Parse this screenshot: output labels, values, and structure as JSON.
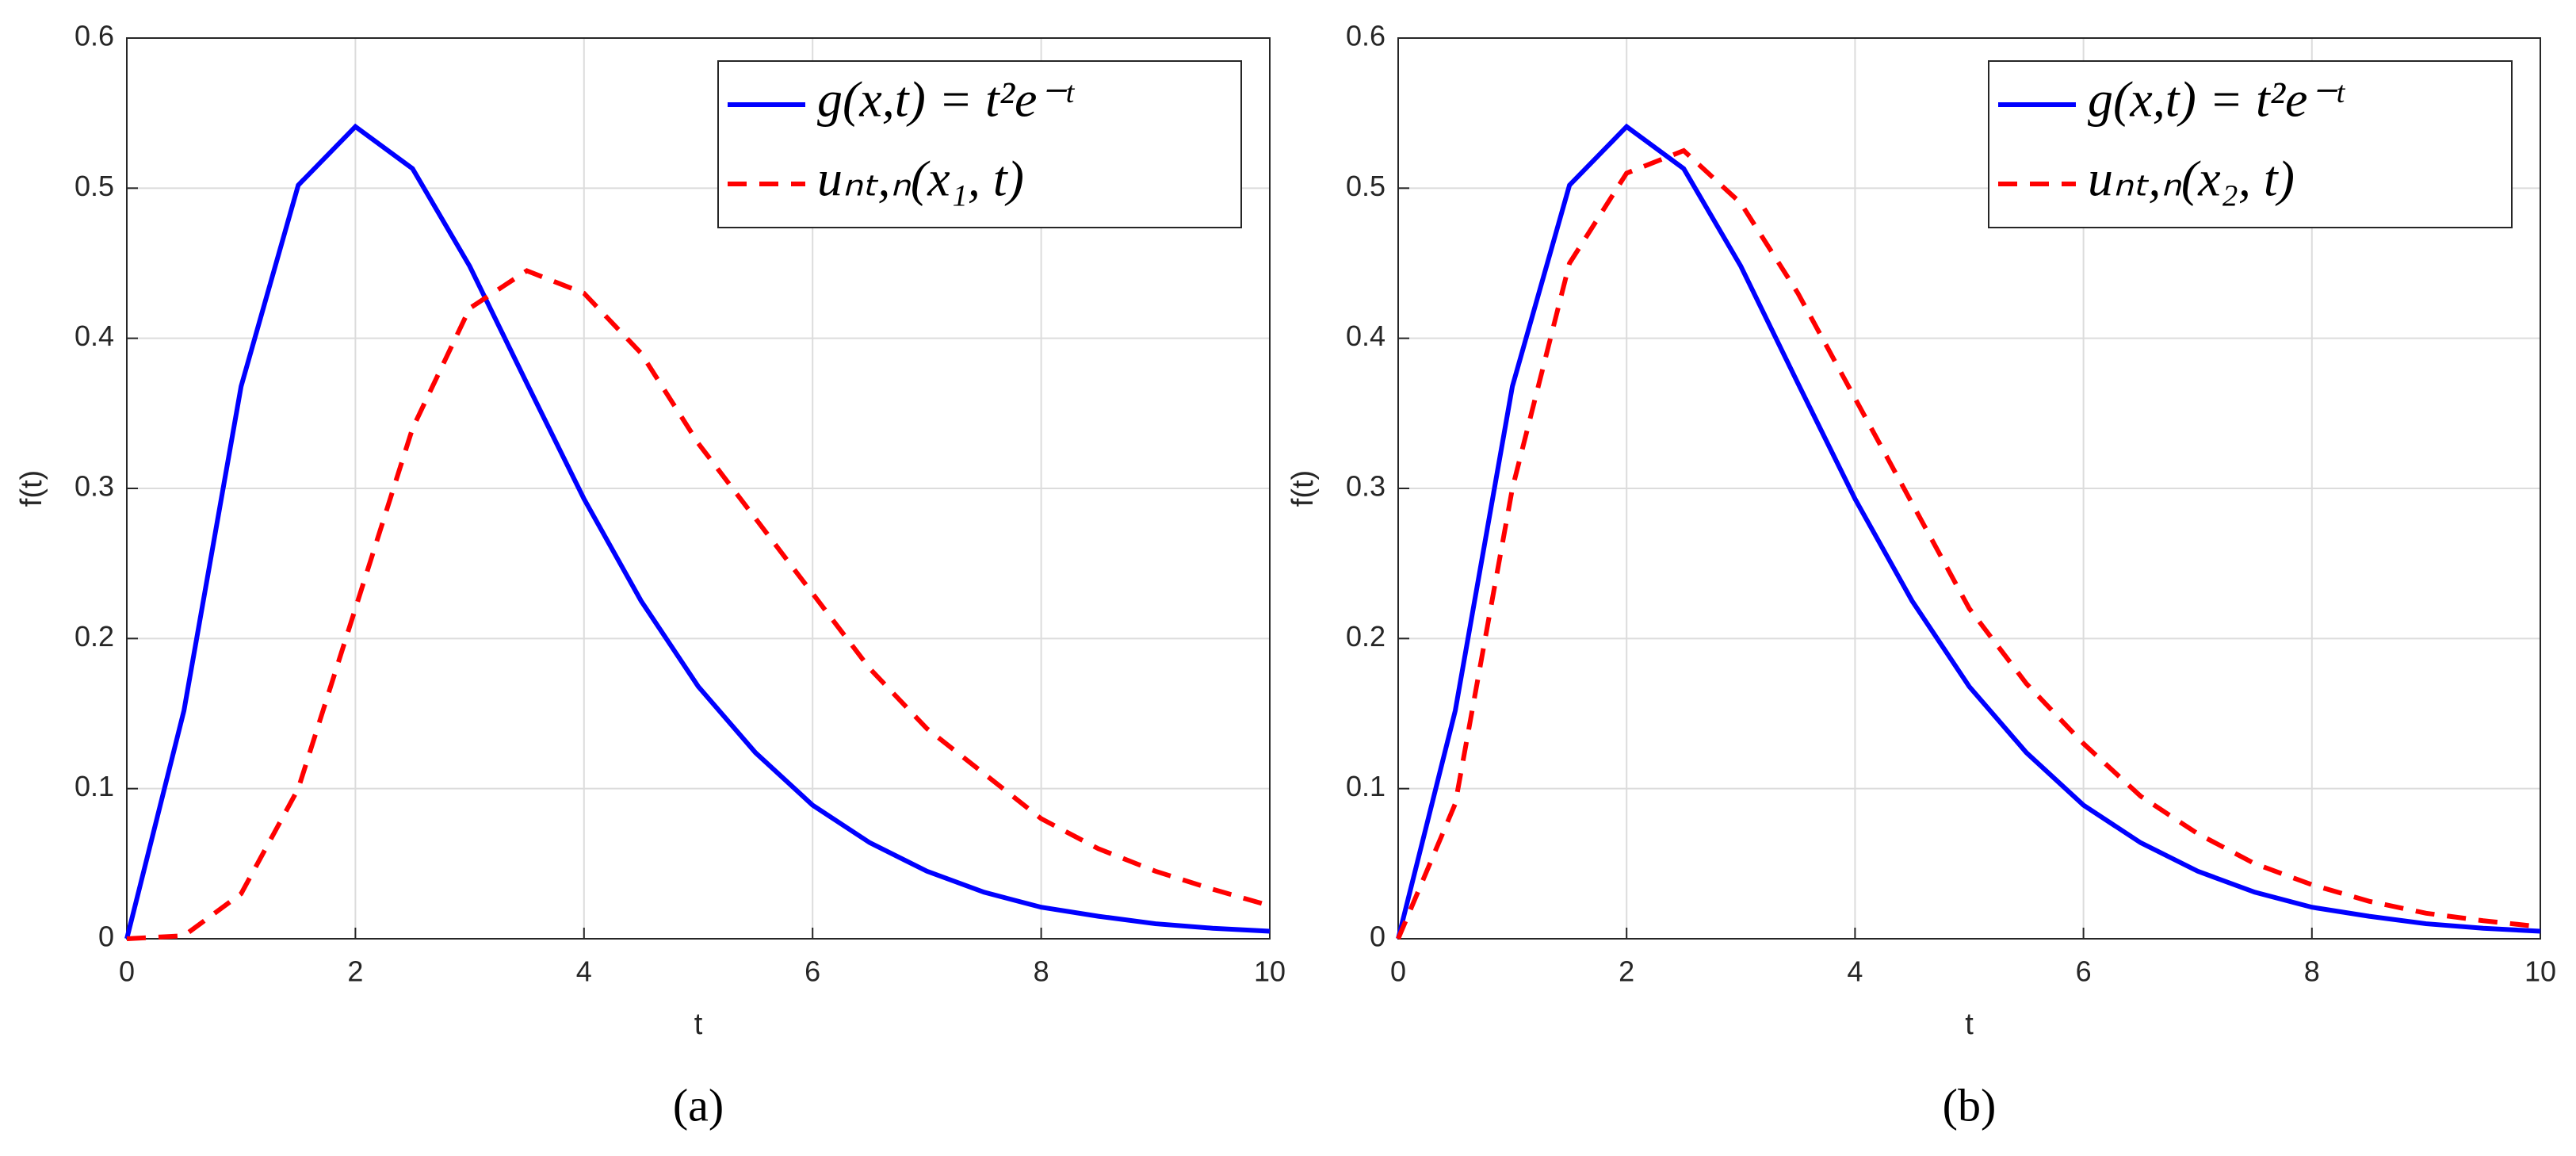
{
  "chart_data": [
    {
      "type": "line",
      "caption": "(a)",
      "xlabel": "t",
      "ylabel": "f(t)",
      "x": [
        0,
        0.5,
        1,
        1.5,
        2,
        2.5,
        3,
        3.5,
        4,
        4.5,
        5,
        5.5,
        6,
        6.5,
        7,
        7.5,
        8,
        8.5,
        9,
        9.5,
        10
      ],
      "xlim": [
        0,
        10
      ],
      "xticks": [
        0,
        2,
        4,
        6,
        8,
        10
      ],
      "ylim": [
        0,
        0.6
      ],
      "yticks": [
        0,
        0.1,
        0.2,
        0.3,
        0.4,
        0.5,
        0.6
      ],
      "grid": true,
      "legend": "upper right",
      "series": [
        {
          "name": "g(x,t) = t²e⁻ᵗ",
          "color": "#0000ff",
          "style": "solid",
          "values": [
            0,
            0.152,
            0.368,
            0.502,
            0.541,
            0.513,
            0.448,
            0.37,
            0.293,
            0.225,
            0.168,
            0.124,
            0.089,
            0.064,
            0.045,
            0.031,
            0.021,
            0.015,
            0.01,
            0.007,
            0.005
          ]
        },
        {
          "name": "uₙₜ,ₙ(x₁, t)",
          "color": "#ff0000",
          "style": "dashed",
          "values": [
            0,
            0.002,
            0.03,
            0.1,
            0.22,
            0.34,
            0.42,
            0.445,
            0.43,
            0.39,
            0.33,
            0.28,
            0.23,
            0.18,
            0.14,
            0.11,
            0.08,
            0.06,
            0.045,
            0.033,
            0.022
          ]
        }
      ]
    },
    {
      "type": "line",
      "caption": "(b)",
      "xlabel": "t",
      "ylabel": "f(t)",
      "x": [
        0,
        0.5,
        1,
        1.5,
        2,
        2.5,
        3,
        3.5,
        4,
        4.5,
        5,
        5.5,
        6,
        6.5,
        7,
        7.5,
        8,
        8.5,
        9,
        9.5,
        10
      ],
      "xlim": [
        0,
        10
      ],
      "xticks": [
        0,
        2,
        4,
        6,
        8,
        10
      ],
      "ylim": [
        0,
        0.6
      ],
      "yticks": [
        0,
        0.1,
        0.2,
        0.3,
        0.4,
        0.5,
        0.6
      ],
      "grid": true,
      "legend": "upper right",
      "series": [
        {
          "name": "g(x,t) = t²e⁻ᵗ",
          "color": "#0000ff",
          "style": "solid",
          "values": [
            0,
            0.152,
            0.368,
            0.502,
            0.541,
            0.513,
            0.448,
            0.37,
            0.293,
            0.225,
            0.168,
            0.124,
            0.089,
            0.064,
            0.045,
            0.031,
            0.021,
            0.015,
            0.01,
            0.007,
            0.005
          ]
        },
        {
          "name": "uₙₜ,ₙ(x₂, t)",
          "color": "#ff0000",
          "style": "dashed",
          "values": [
            0,
            0.09,
            0.3,
            0.45,
            0.51,
            0.525,
            0.49,
            0.43,
            0.36,
            0.29,
            0.22,
            0.17,
            0.13,
            0.095,
            0.07,
            0.05,
            0.036,
            0.025,
            0.017,
            0.012,
            0.008
          ]
        }
      ]
    }
  ]
}
